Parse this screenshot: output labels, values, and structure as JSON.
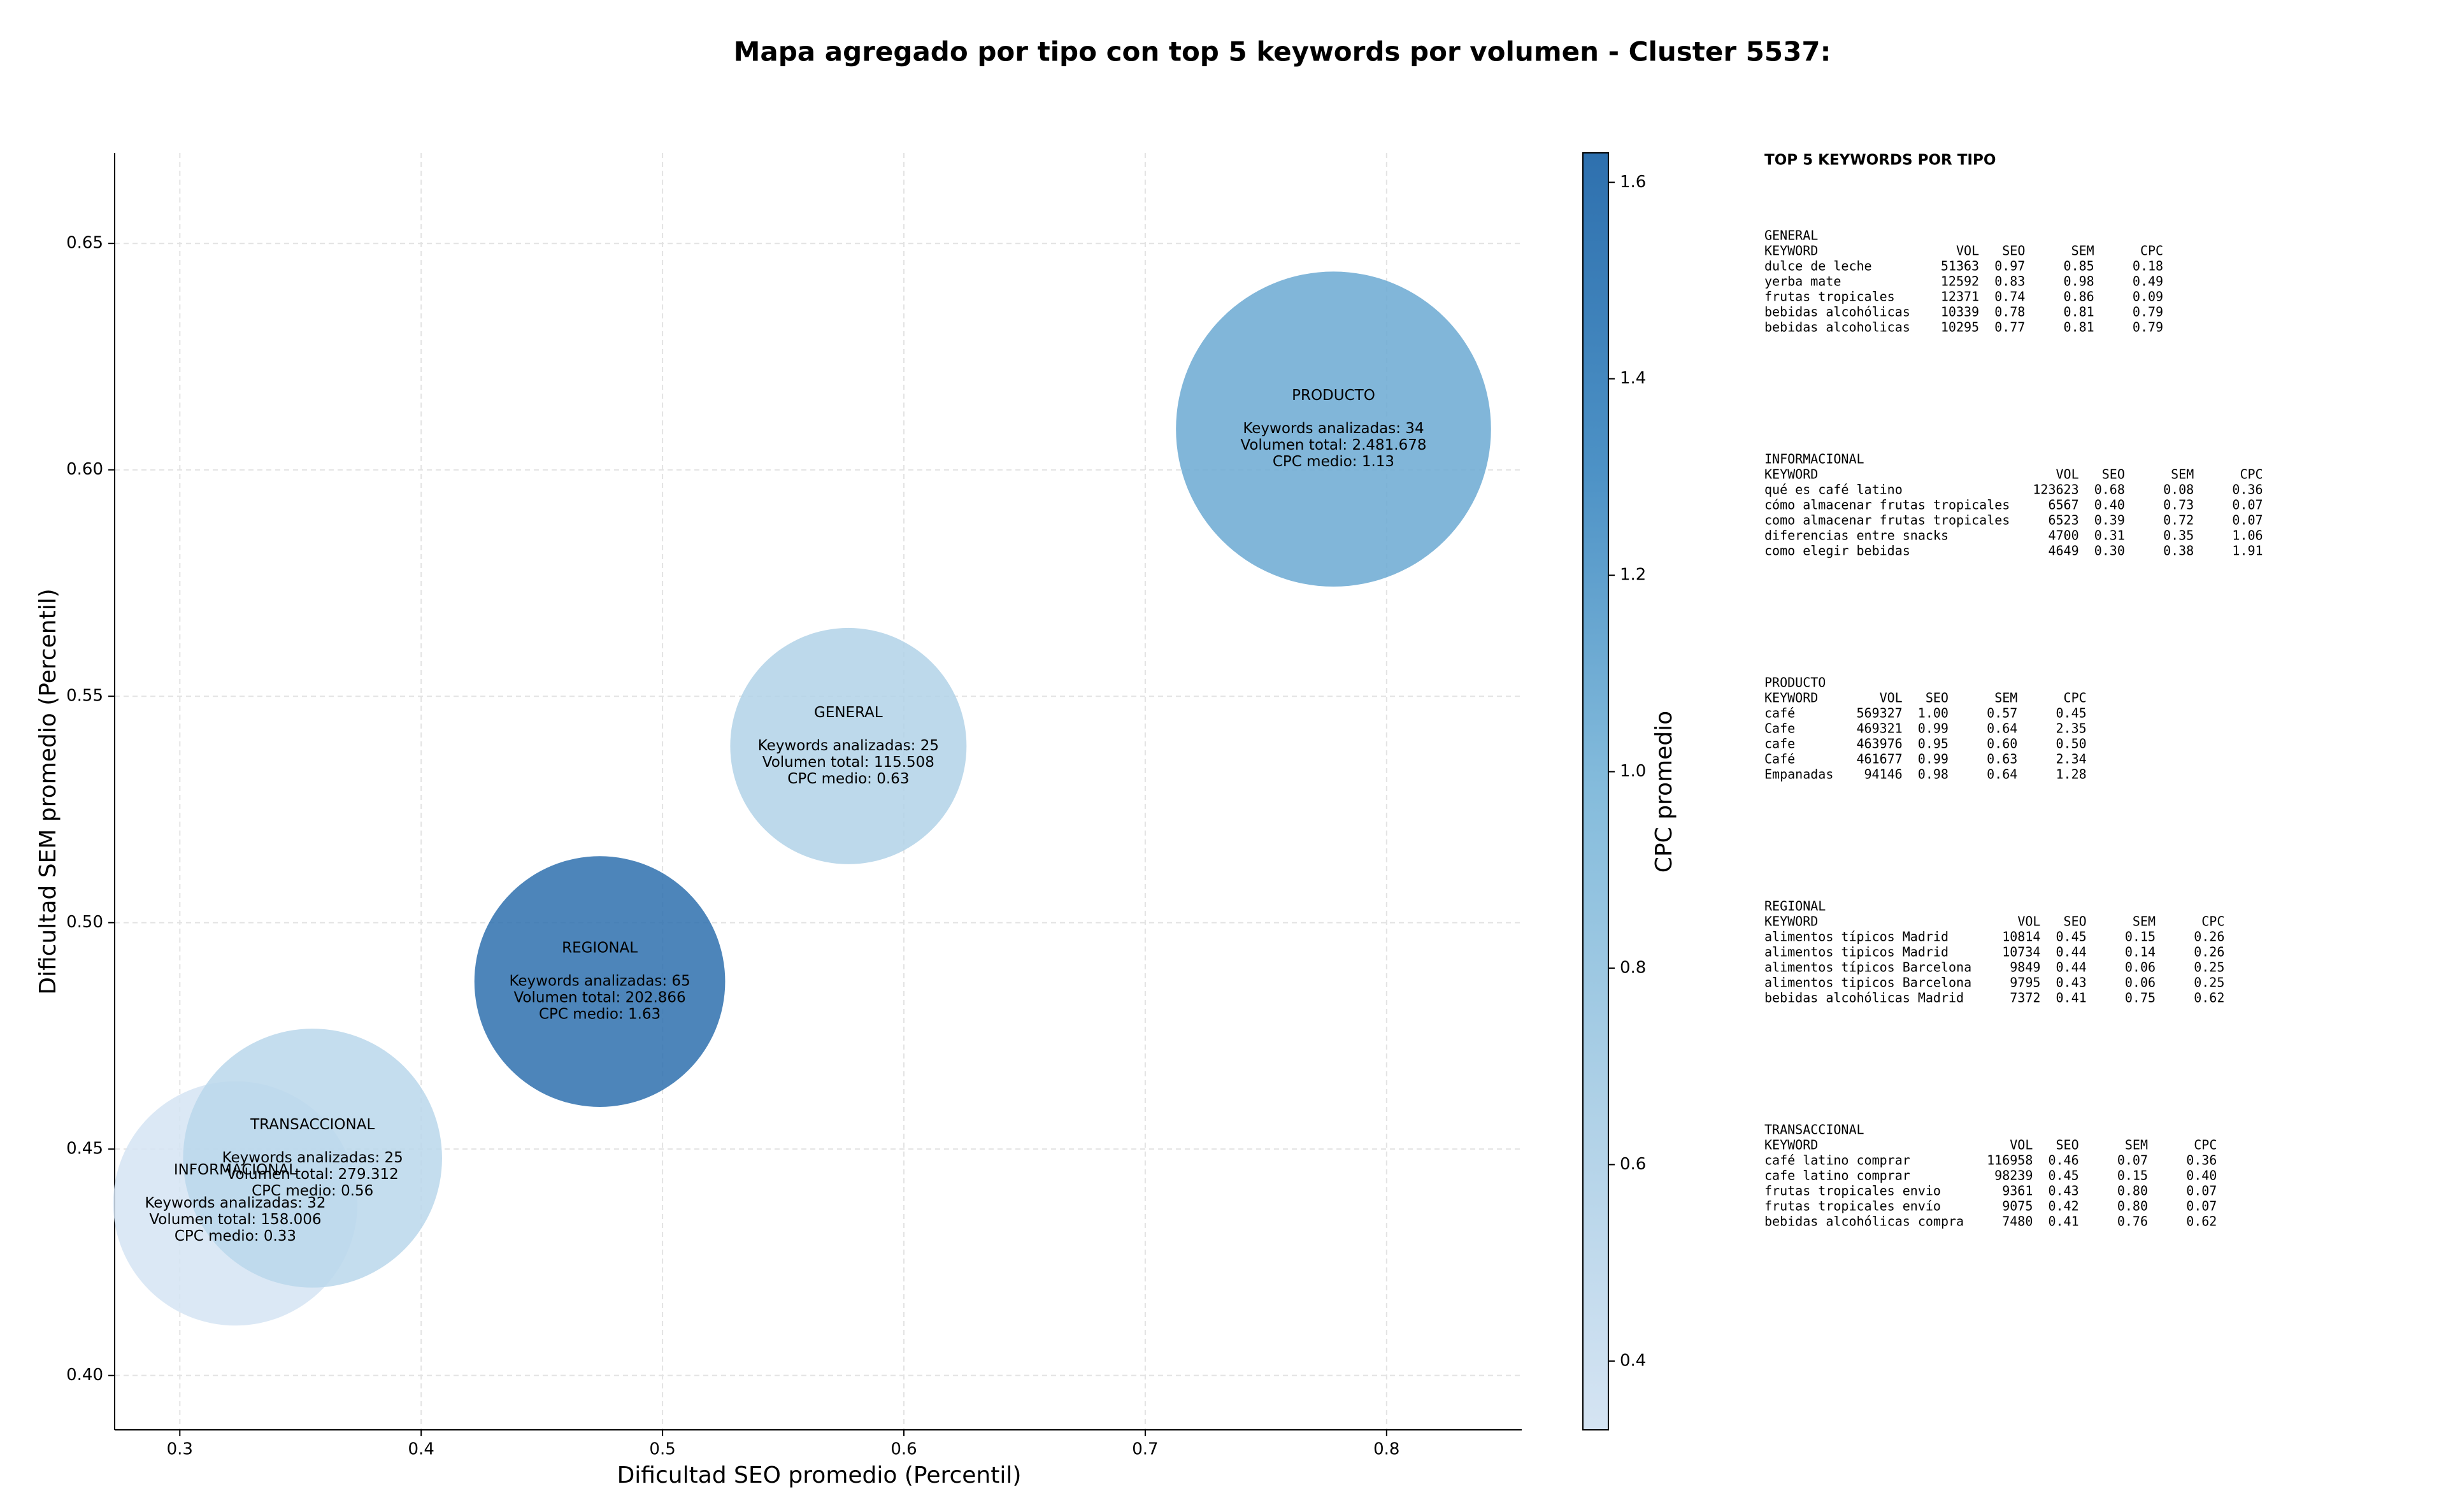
{
  "chart_data": {
    "type": "bubble",
    "title": "Mapa agregado por tipo con top 5 keywords por volumen - Cluster 5537:",
    "x_label": "Dificultad SEO promedio (Percentil)",
    "y_label": "Dificultad SEM promedio (Percentil)",
    "xlim": [
      0.273,
      0.856
    ],
    "ylim": [
      0.388,
      0.67
    ],
    "xticks": [
      0.3,
      0.4,
      0.5,
      0.6,
      0.7,
      0.8
    ],
    "yticks": [
      {
        "value": 0.4,
        "label": "0.40"
      },
      0.45,
      {
        "value": 0.5,
        "label": "0.50"
      },
      0.55,
      {
        "value": 0.6,
        "label": "0.60"
      },
      0.65
    ],
    "grid": true,
    "colorbar": {
      "label": "CPC promedio",
      "lim": [
        0.33,
        1.63
      ],
      "ticks": [
        0.4,
        0.6,
        0.8,
        {
          "value": 1.0,
          "label": "1.0"
        },
        1.2,
        1.4,
        1.6
      ],
      "colors": [
        "#d5e4f3",
        "#afd1e7",
        "#85bcdc",
        "#4d92c6",
        "#2e70ae"
      ]
    },
    "series": [
      {
        "name": "GENERAL",
        "x": 0.577,
        "y": 0.539,
        "keywords": 25,
        "volume": 115508,
        "cpc": 0.63,
        "labels": [
          "Keywords analizadas: 25",
          "Volumen total: 115.508",
          "CPC medio: 0.63"
        ]
      },
      {
        "name": "INFORMACIONAL",
        "x": 0.323,
        "y": 0.438,
        "keywords": 32,
        "volume": 158006,
        "cpc": 0.33,
        "labels": [
          "Keywords analizadas: 32",
          "Volumen total: 158.006",
          "CPC medio: 0.33"
        ]
      },
      {
        "name": "PRODUCTO",
        "x": 0.778,
        "y": 0.609,
        "keywords": 34,
        "volume": 2481678,
        "cpc": 1.13,
        "labels": [
          "Keywords analizadas: 34",
          "Volumen total: 2.481.678",
          "CPC medio: 1.13"
        ]
      },
      {
        "name": "REGIONAL",
        "x": 0.474,
        "y": 0.487,
        "keywords": 65,
        "volume": 202866,
        "cpc": 1.63,
        "labels": [
          "Keywords analizadas: 65",
          "Volumen total: 202.866",
          "CPC medio: 1.63"
        ]
      },
      {
        "name": "TRANSACCIONAL",
        "x": 0.355,
        "y": 0.448,
        "keywords": 25,
        "volume": 279312,
        "cpc": 0.56,
        "labels": [
          "Keywords analizadas: 25",
          "Volumen total: 279.312",
          "CPC medio: 0.56"
        ]
      }
    ]
  },
  "side_table": {
    "title": "TOP 5 KEYWORDS POR TIPO",
    "header": [
      "KEYWORD",
      "VOL",
      "SEO",
      "SEM",
      "CPC"
    ],
    "groups": [
      {
        "name": "GENERAL",
        "rows": [
          [
            "dulce de leche",
            "51363",
            "0.97",
            "0.85",
            "0.18"
          ],
          [
            "yerba mate",
            "12592",
            "0.83",
            "0.98",
            "0.49"
          ],
          [
            "frutas tropicales",
            "12371",
            "0.74",
            "0.86",
            "0.09"
          ],
          [
            "bebidas alcohólicas",
            "10339",
            "0.78",
            "0.81",
            "0.79"
          ],
          [
            "bebidas alcoholicas",
            "10295",
            "0.77",
            "0.81",
            "0.79"
          ]
        ]
      },
      {
        "name": "INFORMACIONAL",
        "rows": [
          [
            "qué es café latino",
            "123623",
            "0.68",
            "0.08",
            "0.36"
          ],
          [
            "cómo almacenar frutas tropicales",
            "6567",
            "0.40",
            "0.73",
            "0.07"
          ],
          [
            "como almacenar frutas tropicales",
            "6523",
            "0.39",
            "0.72",
            "0.07"
          ],
          [
            "diferencias entre snacks",
            "4700",
            "0.31",
            "0.35",
            "1.06"
          ],
          [
            "como elegir bebidas",
            "4649",
            "0.30",
            "0.38",
            "1.91"
          ]
        ]
      },
      {
        "name": "PRODUCTO",
        "rows": [
          [
            "café",
            "569327",
            "1.00",
            "0.57",
            "0.45"
          ],
          [
            "Cafe",
            "469321",
            "0.99",
            "0.64",
            "2.35"
          ],
          [
            "cafe",
            "463976",
            "0.95",
            "0.60",
            "0.50"
          ],
          [
            "Café",
            "461677",
            "0.99",
            "0.63",
            "2.34"
          ],
          [
            "Empanadas",
            "94146",
            "0.98",
            "0.64",
            "1.28"
          ]
        ]
      },
      {
        "name": "REGIONAL",
        "rows": [
          [
            "alimentos típicos Madrid",
            "10814",
            "0.45",
            "0.15",
            "0.26"
          ],
          [
            "alimentos tipicos Madrid",
            "10734",
            "0.44",
            "0.14",
            "0.26"
          ],
          [
            "alimentos típicos Barcelona",
            "9849",
            "0.44",
            "0.06",
            "0.25"
          ],
          [
            "alimentos tipicos Barcelona",
            "9795",
            "0.43",
            "0.06",
            "0.25"
          ],
          [
            "bebidas alcohólicas Madrid",
            "7372",
            "0.41",
            "0.75",
            "0.62"
          ]
        ]
      },
      {
        "name": "TRANSACCIONAL",
        "rows": [
          [
            "café latino comprar",
            "116958",
            "0.46",
            "0.07",
            "0.36"
          ],
          [
            "cafe latino comprar",
            "98239",
            "0.45",
            "0.15",
            "0.40"
          ],
          [
            "frutas tropicales envio",
            "9361",
            "0.43",
            "0.80",
            "0.07"
          ],
          [
            "frutas tropicales envío",
            "9075",
            "0.42",
            "0.80",
            "0.07"
          ],
          [
            "bebidas alcohólicas compra",
            "7480",
            "0.41",
            "0.76",
            "0.62"
          ]
        ]
      }
    ]
  }
}
